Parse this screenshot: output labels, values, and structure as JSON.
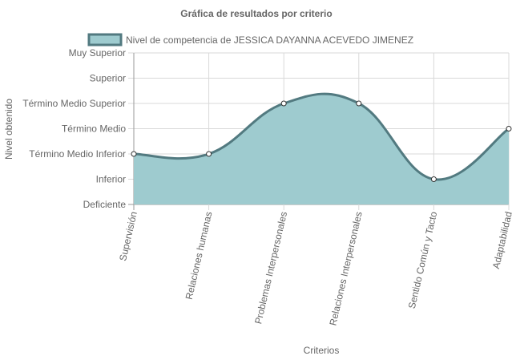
{
  "chart_data": {
    "type": "area",
    "title": "Gráfica de resultados por criterio",
    "xlabel": "Criterios",
    "ylabel": "Nivel obtenido",
    "legend_position": "top",
    "categories": [
      "Supervisión",
      "Relaciones humanas",
      "Problemas Interpersonales",
      "Relaciones Interpersonales",
      "Sentido Común y Tacto",
      "Adaptabilidad"
    ],
    "y_levels": [
      "Deficiente",
      "Inferior",
      "Término Medio Inferior",
      "Término Medio",
      "Término Medio Superior",
      "Superior",
      "Muy Superior"
    ],
    "ylim": [
      0,
      6
    ],
    "grid": true,
    "series": [
      {
        "name": "Nivel de competencia de JESSICA DAYANNA ACEVEDO JIMENEZ",
        "values": [
          2,
          2,
          4,
          4,
          1,
          3
        ],
        "fill_color": "#9ecbcf",
        "line_color": "#527a80"
      }
    ]
  }
}
